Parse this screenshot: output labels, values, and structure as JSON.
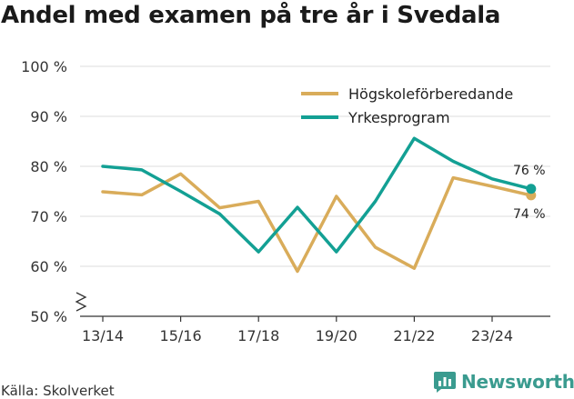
{
  "title": "Andel med examen på tre år i Svedala",
  "source": "Källa: Skolverket",
  "brand": {
    "name": "Newsworthy",
    "icon": "newsworthy-logo-icon"
  },
  "chart_data": {
    "type": "line",
    "title": "Andel med examen på tre år i Svedala",
    "xlabel": "",
    "ylabel": "",
    "x": [
      "13/14",
      "14/15",
      "15/16",
      "16/17",
      "17/18",
      "18/19",
      "19/20",
      "20/21",
      "21/22",
      "22/23",
      "23/24",
      "24/25"
    ],
    "x_tick_labels": [
      "13/14",
      "15/16",
      "17/18",
      "19/20",
      "21/22",
      "23/24"
    ],
    "y_ticks": [
      50,
      60,
      70,
      80,
      90,
      100
    ],
    "y_tick_labels": [
      "50 %",
      "60 %",
      "70 %",
      "80 %",
      "90 %",
      "100 %"
    ],
    "ylim": [
      50,
      100
    ],
    "y_axis_break": true,
    "grid": true,
    "legend_position": "top-right",
    "series": [
      {
        "name": "Högskoleförberedande",
        "color": "#d9ac5a",
        "values": [
          74.9,
          74.3,
          78.5,
          71.7,
          73.0,
          59.0,
          74.0,
          63.8,
          59.6,
          77.7,
          76.0,
          74.2
        ],
        "end_label": "74 %"
      },
      {
        "name": "Yrkesprogram",
        "color": "#13a094",
        "values": [
          80.0,
          79.3,
          75.0,
          70.5,
          62.9,
          71.8,
          62.9,
          73.0,
          85.6,
          81.0,
          77.5,
          75.5
        ],
        "end_label": "76 %"
      }
    ]
  }
}
